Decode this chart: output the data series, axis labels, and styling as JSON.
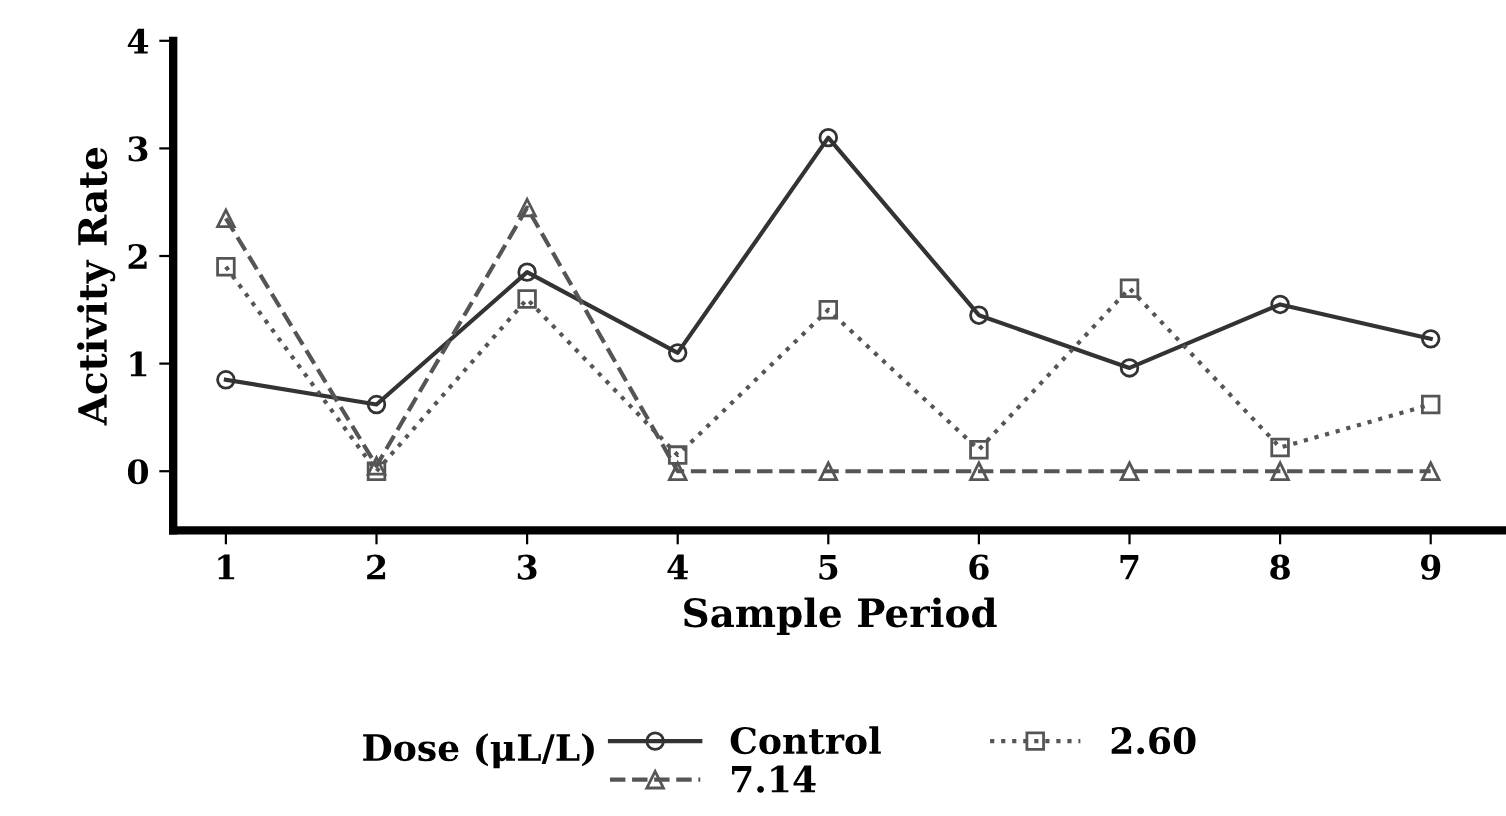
{
  "chart_data": {
    "type": "line",
    "xlabel": "Sample Period",
    "ylabel": "Activity Rate",
    "legend_title": "Dose (μL/L)",
    "x": [
      1,
      2,
      3,
      4,
      5,
      6,
      7,
      8,
      9
    ],
    "series": [
      {
        "name": "Control",
        "color": "#333333",
        "marker": "circle",
        "line_style": "solid",
        "values": [
          0.85,
          0.62,
          1.85,
          1.1,
          3.1,
          1.45,
          0.96,
          1.55,
          1.23
        ]
      },
      {
        "name": "2.60",
        "color": "#555555",
        "marker": "square",
        "line_style": "dotted",
        "values": [
          1.9,
          0,
          1.6,
          0.15,
          1.5,
          0.2,
          1.7,
          0.22,
          0.62
        ]
      },
      {
        "name": "7.14",
        "color": "#555555",
        "marker": "triangle",
        "line_style": "dashed",
        "values": [
          2.35,
          0.05,
          2.45,
          0,
          0,
          0,
          0,
          0,
          0
        ]
      }
    ],
    "xlim": [
      0.65,
      9.5
    ],
    "xticks": [
      1,
      2,
      3,
      4,
      5,
      6,
      7,
      8,
      9
    ],
    "ylim": [
      -0.55,
      4
    ],
    "yticks": [
      0,
      1,
      2,
      3,
      4
    ],
    "grid": false,
    "legend": "bottom"
  }
}
